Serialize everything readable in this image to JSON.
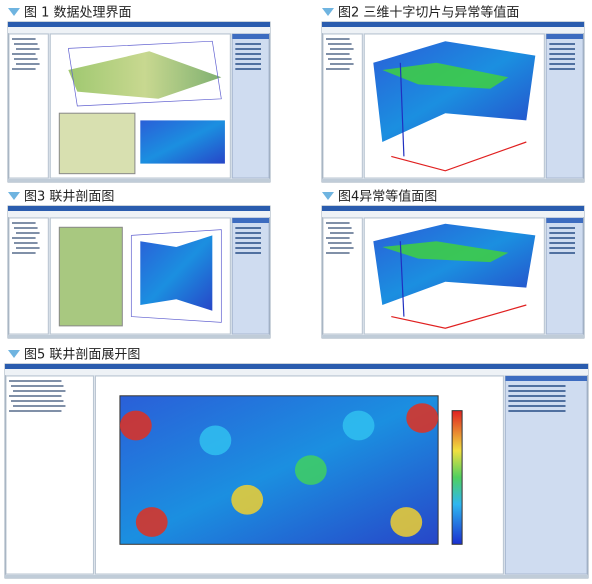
{
  "figures": [
    {
      "caption": "图 1 数据处理界面"
    },
    {
      "caption": "图2 三维十字切片与异常等值面"
    },
    {
      "caption": "图3 联井剖面图"
    },
    {
      "caption": "图4异常等值面图"
    },
    {
      "caption": "图5 联井剖面展开图"
    }
  ]
}
